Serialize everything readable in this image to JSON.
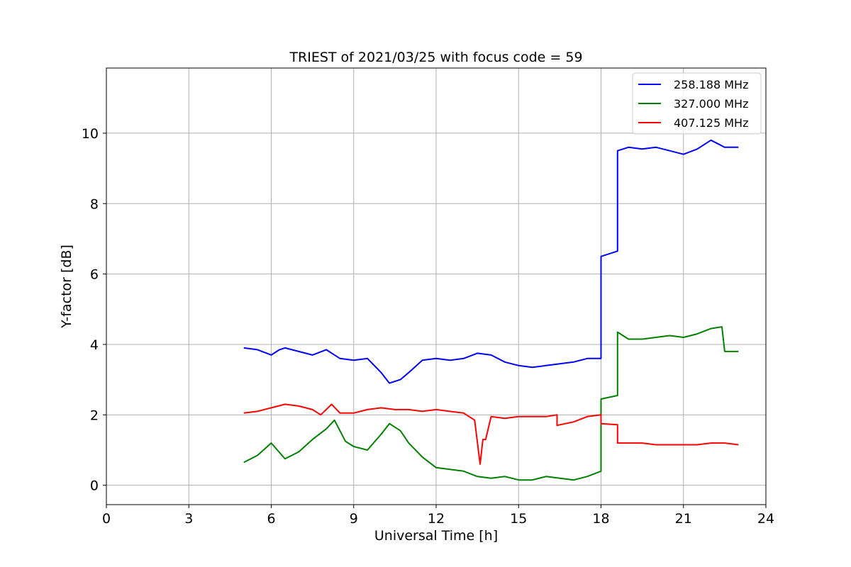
{
  "chart_data": {
    "type": "line",
    "title": "TRIEST of 2021/03/25 with focus code = 59",
    "xlabel": "Universal Time [h]",
    "ylabel": "Y-factor [dB]",
    "xlim": [
      0,
      24
    ],
    "ylim": [
      -0.55,
      11.85
    ],
    "xticks": [
      0,
      3,
      6,
      9,
      12,
      15,
      18,
      21,
      24
    ],
    "yticks": [
      0,
      2,
      4,
      6,
      8,
      10
    ],
    "grid": true,
    "legend_position": "top-right",
    "series": [
      {
        "name": "258.188 MHz",
        "color": "#0000ff",
        "x": [
          5.0,
          5.5,
          6.0,
          6.3,
          6.5,
          7.0,
          7.5,
          8.0,
          8.5,
          9.0,
          9.5,
          10.0,
          10.3,
          10.7,
          11.0,
          11.5,
          12.0,
          12.5,
          13.0,
          13.5,
          14.0,
          14.5,
          15.0,
          15.5,
          16.0,
          16.5,
          17.0,
          17.5,
          18.0,
          18.0,
          18.6,
          18.6,
          19.0,
          19.5,
          20.0,
          20.5,
          21.0,
          21.5,
          22.0,
          22.5,
          23.0
        ],
        "y": [
          3.9,
          3.85,
          3.7,
          3.85,
          3.9,
          3.8,
          3.7,
          3.85,
          3.6,
          3.55,
          3.6,
          3.2,
          2.9,
          3.0,
          3.2,
          3.55,
          3.6,
          3.55,
          3.6,
          3.75,
          3.7,
          3.5,
          3.4,
          3.35,
          3.4,
          3.45,
          3.5,
          3.6,
          3.6,
          6.5,
          6.65,
          9.5,
          9.6,
          9.55,
          9.6,
          9.5,
          9.4,
          9.55,
          9.8,
          9.6,
          9.6
        ]
      },
      {
        "name": "327.000 MHz",
        "color": "#008000",
        "x": [
          5.0,
          5.5,
          6.0,
          6.5,
          7.0,
          7.5,
          8.0,
          8.3,
          8.7,
          9.0,
          9.5,
          10.0,
          10.3,
          10.7,
          11.0,
          11.5,
          12.0,
          12.5,
          13.0,
          13.5,
          14.0,
          14.5,
          15.0,
          15.5,
          16.0,
          16.5,
          17.0,
          17.5,
          18.0,
          18.0,
          18.6,
          18.6,
          19.0,
          19.5,
          20.0,
          20.5,
          21.0,
          21.5,
          22.0,
          22.4,
          22.5,
          23.0
        ],
        "y": [
          0.65,
          0.85,
          1.2,
          0.75,
          0.95,
          1.3,
          1.6,
          1.85,
          1.25,
          1.1,
          1.0,
          1.45,
          1.75,
          1.55,
          1.2,
          0.8,
          0.5,
          0.45,
          0.4,
          0.25,
          0.2,
          0.25,
          0.15,
          0.15,
          0.25,
          0.2,
          0.15,
          0.25,
          0.4,
          2.45,
          2.55,
          4.35,
          4.15,
          4.15,
          4.2,
          4.25,
          4.2,
          4.3,
          4.45,
          4.5,
          3.8,
          3.8
        ]
      },
      {
        "name": "407.125 MHz",
        "color": "#ff0000",
        "x": [
          5.0,
          5.5,
          6.0,
          6.5,
          7.0,
          7.5,
          7.8,
          8.2,
          8.5,
          9.0,
          9.5,
          10.0,
          10.5,
          11.0,
          11.5,
          12.0,
          12.5,
          13.0,
          13.4,
          13.6,
          13.7,
          13.8,
          14.0,
          14.5,
          15.0,
          15.5,
          16.0,
          16.4,
          16.4,
          17.0,
          17.5,
          18.0,
          18.0,
          18.6,
          18.6,
          19.0,
          19.5,
          20.0,
          20.5,
          21.0,
          21.5,
          22.0,
          22.5,
          23.0
        ],
        "y": [
          2.05,
          2.1,
          2.2,
          2.3,
          2.25,
          2.15,
          2.0,
          2.3,
          2.05,
          2.05,
          2.15,
          2.2,
          2.15,
          2.15,
          2.1,
          2.15,
          2.1,
          2.05,
          1.85,
          0.6,
          1.3,
          1.3,
          1.95,
          1.9,
          1.95,
          1.95,
          1.95,
          2.0,
          1.7,
          1.8,
          1.95,
          2.0,
          1.75,
          1.72,
          1.2,
          1.2,
          1.2,
          1.15,
          1.15,
          1.15,
          1.15,
          1.2,
          1.2,
          1.15
        ]
      }
    ]
  }
}
